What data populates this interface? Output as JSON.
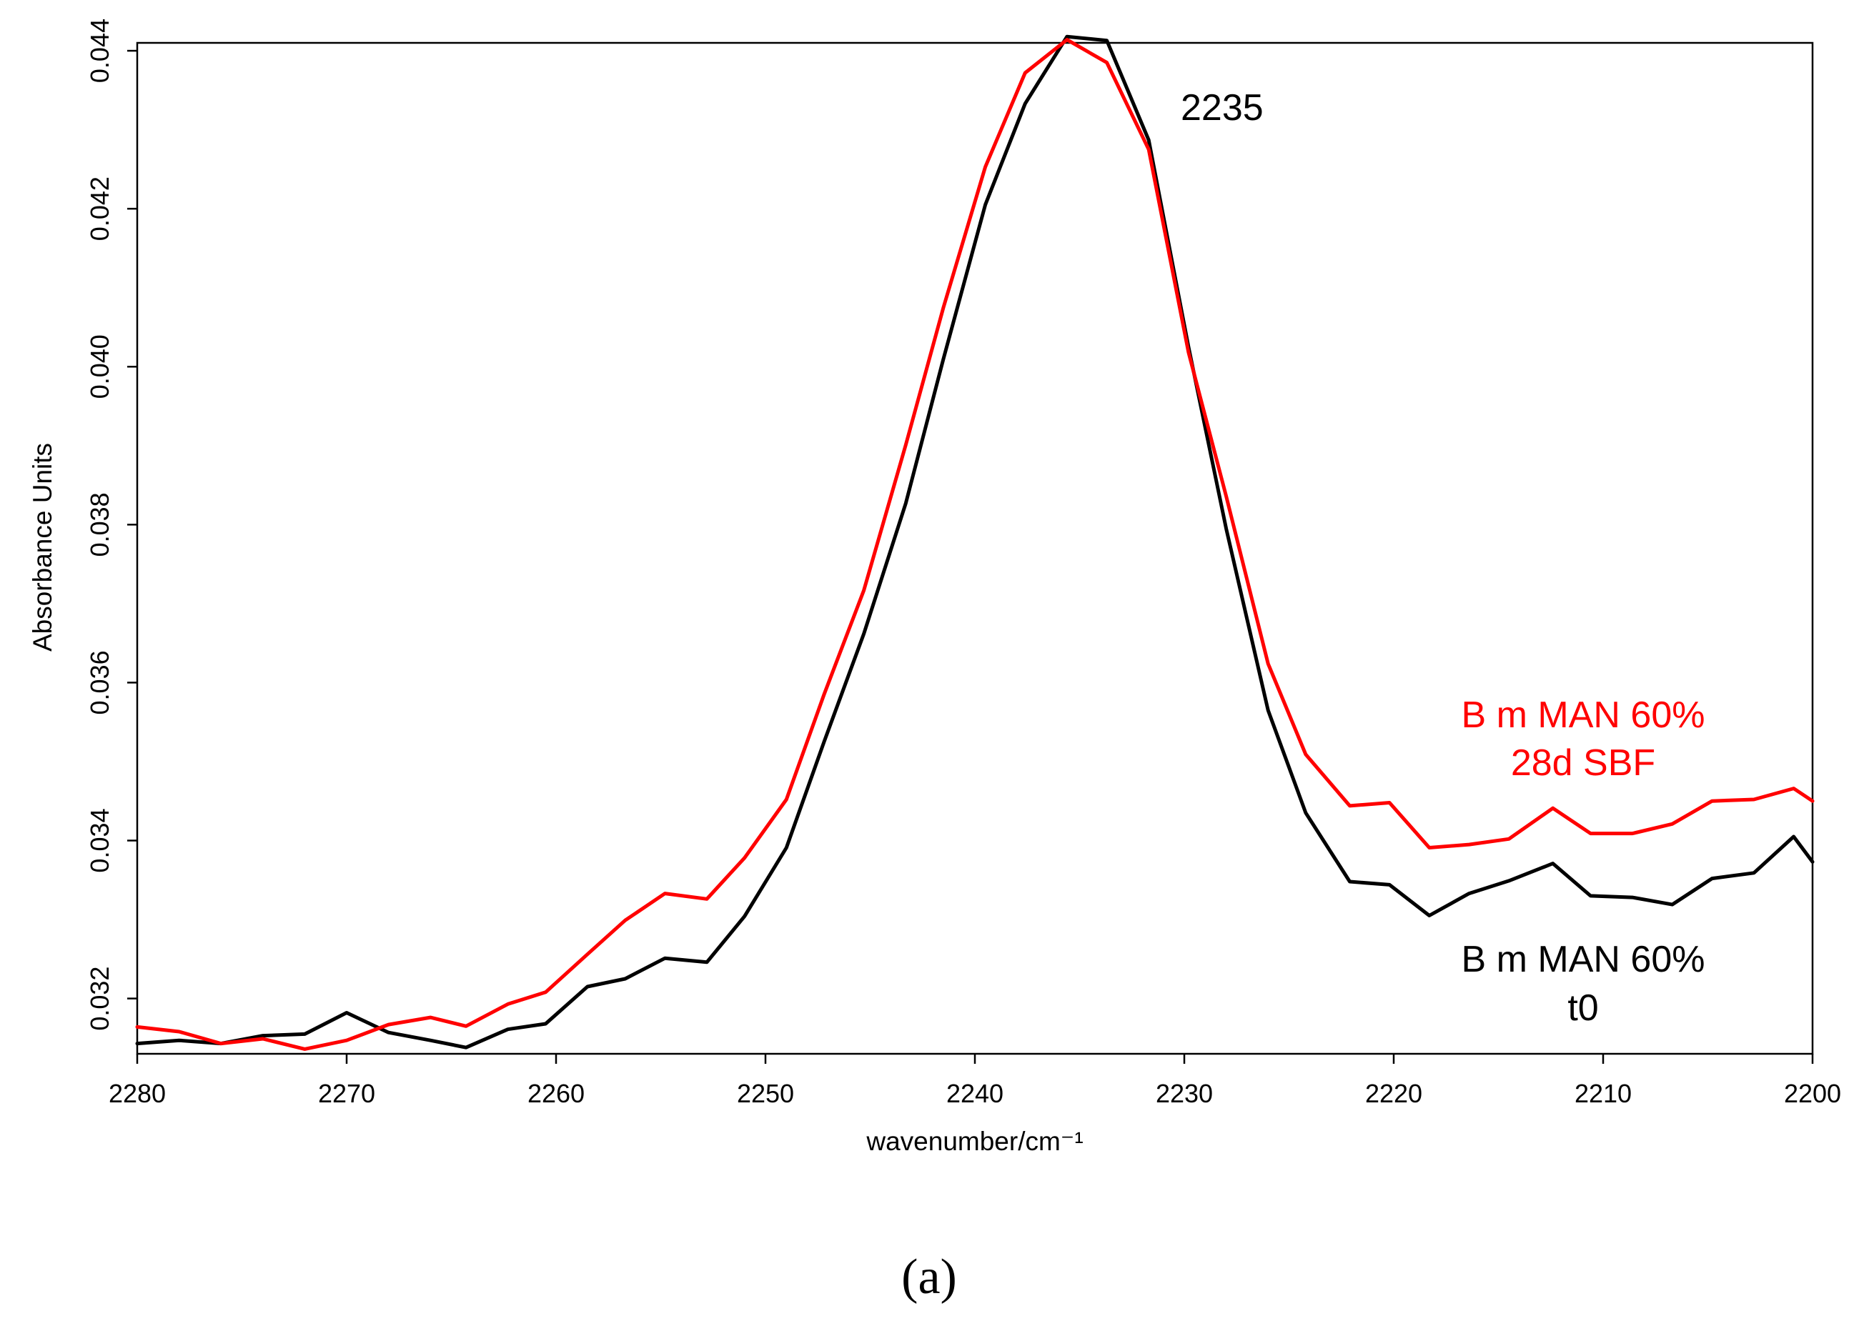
{
  "chart_data": {
    "type": "line",
    "title": "",
    "xlabel": "wavenumber/cm⁻¹",
    "ylabel": "Absorbance Units",
    "xlim": [
      2280,
      2200
    ],
    "ylim": [
      0.0313,
      0.0441
    ],
    "x_ticks": [
      2280,
      2270,
      2260,
      2250,
      2240,
      2230,
      2220,
      2210,
      2200
    ],
    "y_ticks": [
      0.032,
      0.034,
      0.036,
      0.038,
      0.04,
      0.042,
      0.044
    ],
    "y_tick_labels": [
      "0.032",
      "0.034",
      "0.036",
      "0.038",
      "0.040",
      "0.042",
      "0.044"
    ],
    "grid": false,
    "legend": "none",
    "series": [
      {
        "name": "B m MAN 60% t0",
        "color": "#000000",
        "x": [
          2280,
          2278,
          2276,
          2274,
          2272,
          2270,
          2268,
          2266,
          2264.3,
          2262.3,
          2260.5,
          2258.5,
          2256.7,
          2254.8,
          2252.8,
          2251,
          2249,
          2247.2,
          2245.3,
          2243.3,
          2241.5,
          2239.5,
          2237.6,
          2235.6,
          2233.7,
          2231.7,
          2229.8,
          2228,
          2226,
          2224.2,
          2222.1,
          2220.2,
          2218.3,
          2216.4,
          2214.5,
          2212.4,
          2210.6,
          2208.6,
          2206.7,
          2204.8,
          2202.8,
          2200.9,
          2200
        ],
        "y": [
          0.03143,
          0.03147,
          0.03143,
          0.03153,
          0.03155,
          0.03182,
          0.03157,
          0.03147,
          0.03138,
          0.03161,
          0.03168,
          0.03215,
          0.03225,
          0.03251,
          0.03246,
          0.03304,
          0.03391,
          0.03525,
          0.03662,
          0.03827,
          0.0401,
          0.04205,
          0.04333,
          0.04418,
          0.04413,
          0.04287,
          0.04025,
          0.03795,
          0.03565,
          0.03435,
          0.03348,
          0.03344,
          0.03305,
          0.03333,
          0.03349,
          0.03371,
          0.0333,
          0.03328,
          0.03319,
          0.03352,
          0.03359,
          0.03405,
          0.03373
        ]
      },
      {
        "name": "B m MAN 60% 28d SBF",
        "color": "#ff0000",
        "x": [
          2280,
          2278,
          2276,
          2274,
          2272,
          2270,
          2268,
          2266,
          2264.3,
          2262.3,
          2260.5,
          2258.5,
          2256.7,
          2254.8,
          2252.8,
          2251,
          2249,
          2247.2,
          2245.3,
          2243.3,
          2241.5,
          2239.5,
          2237.6,
          2235.6,
          2233.7,
          2231.7,
          2229.8,
          2228,
          2226,
          2224.2,
          2222.1,
          2220.2,
          2218.3,
          2216.4,
          2214.5,
          2212.4,
          2210.6,
          2208.6,
          2206.7,
          2204.8,
          2202.8,
          2200.9,
          2200
        ],
        "y": [
          0.03164,
          0.03158,
          0.03143,
          0.03149,
          0.03136,
          0.03147,
          0.03167,
          0.03176,
          0.03165,
          0.03193,
          0.03208,
          0.03256,
          0.03299,
          0.03333,
          0.03326,
          0.03378,
          0.03452,
          0.03585,
          0.03717,
          0.03901,
          0.04075,
          0.04253,
          0.04372,
          0.04414,
          0.04385,
          0.04275,
          0.04018,
          0.03836,
          0.03624,
          0.03509,
          0.03444,
          0.03448,
          0.03391,
          0.03395,
          0.03402,
          0.03441,
          0.03409,
          0.03409,
          0.03421,
          0.0345,
          0.03452,
          0.03466,
          0.0345
        ]
      }
    ],
    "annotations": [
      {
        "id": "peak",
        "text": "2235",
        "color": "#000000"
      },
      {
        "id": "red_line1",
        "text": "B m MAN 60%",
        "color": "#ff0000"
      },
      {
        "id": "red_line2",
        "text": "28d SBF",
        "color": "#ff0000"
      },
      {
        "id": "black_line1",
        "text": "B m MAN 60%",
        "color": "#000000"
      },
      {
        "id": "black_line2",
        "text": "t0",
        "color": "#000000"
      }
    ],
    "panel_label": "(a)"
  }
}
